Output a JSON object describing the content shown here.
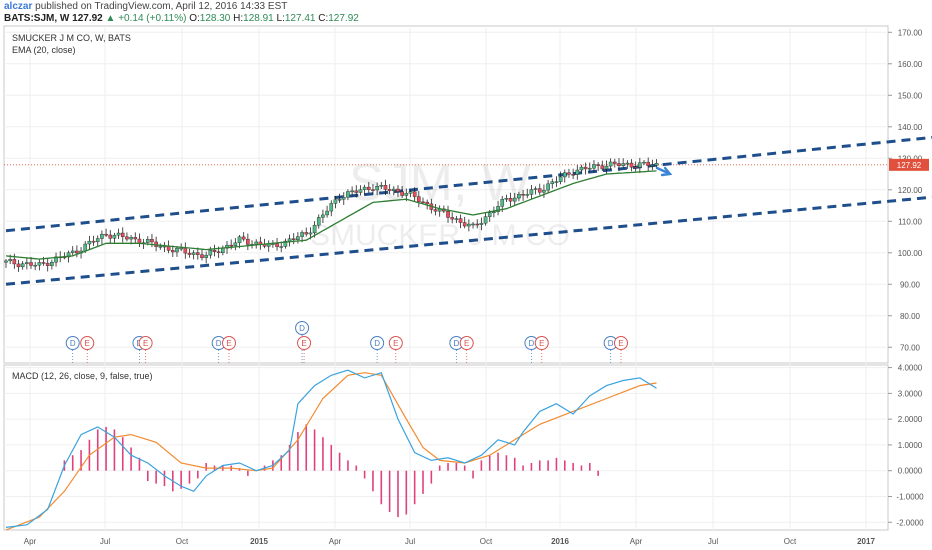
{
  "header": {
    "user": "alczar",
    "published": "published on TradingView.com, April 12, 2016 14:33 EST",
    "symbol": "BATS:SJM, W",
    "last": "127.92",
    "change": "+0.14 (+0.11%)",
    "o_label": "O:",
    "o": "128.30",
    "h_label": "H:",
    "h": "128.91",
    "l_label": "L:",
    "l": "127.41",
    "c_label": "C:",
    "c": "127.92"
  },
  "legend": {
    "series_title": "SMUCKER J M CO, W, BATS",
    "ema": "EMA (20, close)",
    "macd": "MACD (12, 26, close, 9, false, true)"
  },
  "watermark": {
    "symbol": "SJM, W",
    "name": "SMUCKER J M CO"
  },
  "colors": {
    "up": "#53b987",
    "down": "#eb4d5c",
    "ema": "#2e7d32",
    "channel": "#1f4e8c",
    "macd": "#3ba3e0",
    "signal": "#f28b30",
    "hist": "#e0417e",
    "price_tag": "#e0503c",
    "arrow": "#3b86d6"
  },
  "chart_data": [
    {
      "type": "candlestick",
      "price_label": "127.92",
      "ylim": [
        65,
        172
      ],
      "yticks": [
        "70.00",
        "80.00",
        "90.00",
        "100.00",
        "110.00",
        "120.00",
        "130.00",
        "140.00",
        "150.00",
        "160.00",
        "170.00"
      ],
      "xticks": [
        "Apr",
        "Jul",
        "Oct",
        "2015",
        "Apr",
        "Jul",
        "Oct",
        "2016",
        "Apr",
        "Jul",
        "Oct",
        "2017"
      ],
      "close_path": [
        [
          0,
          97
        ],
        [
          8,
          96
        ],
        [
          16,
          100
        ],
        [
          24,
          106
        ],
        [
          32,
          104
        ],
        [
          40,
          101
        ],
        [
          48,
          99
        ],
        [
          56,
          104
        ],
        [
          64,
          102
        ],
        [
          72,
          106
        ],
        [
          80,
          118
        ],
        [
          88,
          121
        ],
        [
          96,
          119
        ],
        [
          104,
          113
        ],
        [
          112,
          108
        ],
        [
          120,
          117
        ],
        [
          128,
          120
        ],
        [
          136,
          126
        ],
        [
          144,
          128
        ],
        [
          150,
          128
        ],
        [
          156,
          127.9
        ]
      ],
      "ema_path": [
        [
          0,
          99
        ],
        [
          8,
          98
        ],
        [
          16,
          99
        ],
        [
          24,
          103
        ],
        [
          32,
          103
        ],
        [
          40,
          102
        ],
        [
          48,
          101
        ],
        [
          56,
          102
        ],
        [
          64,
          103
        ],
        [
          72,
          104
        ],
        [
          80,
          110
        ],
        [
          88,
          116
        ],
        [
          96,
          117
        ],
        [
          104,
          114
        ],
        [
          112,
          112
        ],
        [
          120,
          114
        ],
        [
          128,
          118
        ],
        [
          136,
          122
        ],
        [
          144,
          125
        ],
        [
          156,
          126
        ]
      ],
      "channel_upper": [
        [
          0,
          107
        ],
        [
          225,
          137
        ]
      ],
      "channel_lower": [
        [
          0,
          90
        ],
        [
          225,
          118
        ]
      ],
      "events": [
        {
          "week": 16,
          "type": "D"
        },
        {
          "week": 19,
          "type": "E"
        },
        {
          "week": 32,
          "type": "D"
        },
        {
          "week": 33,
          "type": "E"
        },
        {
          "week": 51,
          "type": "D"
        },
        {
          "week": 53,
          "type": "E"
        },
        {
          "week": 71,
          "type": "D"
        },
        {
          "week": 71,
          "type": "E"
        },
        {
          "week": 89,
          "type": "D"
        },
        {
          "week": 93,
          "type": "E"
        },
        {
          "week": 108,
          "type": "D"
        },
        {
          "week": 110,
          "type": "E"
        },
        {
          "week": 126,
          "type": "D"
        },
        {
          "week": 128,
          "type": "E"
        },
        {
          "week": 145,
          "type": "D"
        },
        {
          "week": 147,
          "type": "E"
        }
      ]
    },
    {
      "type": "line",
      "title": "MACD (12, 26, close, 9, false, true)",
      "ylim": [
        -2.3,
        4.1
      ],
      "yticks": [
        "-2.0000",
        "-1.0000",
        "0.0000",
        "1.0000",
        "2.0000",
        "3.0000",
        "4.0000"
      ],
      "macd": [
        [
          0,
          -2.2
        ],
        [
          5,
          -2.1
        ],
        [
          10,
          -1.5
        ],
        [
          14,
          0.2
        ],
        [
          18,
          1.4
        ],
        [
          22,
          1.7
        ],
        [
          26,
          1.3
        ],
        [
          30,
          0.6
        ],
        [
          34,
          0.3
        ],
        [
          38,
          -0.2
        ],
        [
          42,
          -0.6
        ],
        [
          45,
          -0.8
        ],
        [
          48,
          -0.2
        ],
        [
          52,
          0.2
        ],
        [
          56,
          0.3
        ],
        [
          60,
          0.0
        ],
        [
          64,
          0.2
        ],
        [
          68,
          0.8
        ],
        [
          70,
          2.6
        ],
        [
          74,
          3.3
        ],
        [
          78,
          3.7
        ],
        [
          82,
          3.9
        ],
        [
          86,
          3.6
        ],
        [
          90,
          3.8
        ],
        [
          94,
          2.0
        ],
        [
          98,
          0.7
        ],
        [
          102,
          0.4
        ],
        [
          106,
          0.5
        ],
        [
          110,
          0.3
        ],
        [
          114,
          0.6
        ],
        [
          118,
          1.2
        ],
        [
          122,
          1.0
        ],
        [
          124,
          1.5
        ],
        [
          128,
          2.3
        ],
        [
          132,
          2.6
        ],
        [
          136,
          2.2
        ],
        [
          140,
          2.9
        ],
        [
          144,
          3.3
        ],
        [
          148,
          3.5
        ],
        [
          152,
          3.6
        ],
        [
          156,
          3.2
        ]
      ],
      "signal": [
        [
          0,
          -2.3
        ],
        [
          8,
          -1.8
        ],
        [
          14,
          -0.8
        ],
        [
          20,
          0.6
        ],
        [
          26,
          1.3
        ],
        [
          30,
          1.4
        ],
        [
          36,
          1.1
        ],
        [
          42,
          0.3
        ],
        [
          48,
          0.1
        ],
        [
          54,
          0.1
        ],
        [
          60,
          0.0
        ],
        [
          64,
          0.1
        ],
        [
          70,
          1.2
        ],
        [
          76,
          2.8
        ],
        [
          82,
          3.7
        ],
        [
          86,
          3.8
        ],
        [
          90,
          3.7
        ],
        [
          96,
          2.0
        ],
        [
          100,
          0.9
        ],
        [
          104,
          0.4
        ],
        [
          110,
          0.3
        ],
        [
          116,
          0.6
        ],
        [
          122,
          1.2
        ],
        [
          128,
          1.8
        ],
        [
          136,
          2.3
        ],
        [
          144,
          2.8
        ],
        [
          152,
          3.3
        ],
        [
          156,
          3.4
        ]
      ],
      "histogram": [
        [
          14,
          0.4
        ],
        [
          16,
          0.6
        ],
        [
          18,
          0.8
        ],
        [
          20,
          1.2
        ],
        [
          22,
          1.6
        ],
        [
          24,
          1.7
        ],
        [
          26,
          1.6
        ],
        [
          28,
          1.3
        ],
        [
          30,
          0.9
        ],
        [
          32,
          0.5
        ],
        [
          34,
          -0.4
        ],
        [
          36,
          -0.5
        ],
        [
          38,
          -0.6
        ],
        [
          40,
          -0.8
        ],
        [
          42,
          -0.7
        ],
        [
          44,
          -0.5
        ],
        [
          46,
          -0.3
        ],
        [
          48,
          0.3
        ],
        [
          50,
          0.2
        ],
        [
          52,
          0.2
        ],
        [
          54,
          0.2
        ],
        [
          56,
          0.1
        ],
        [
          58,
          -0.2
        ],
        [
          62,
          0.2
        ],
        [
          64,
          0.4
        ],
        [
          66,
          0.6
        ],
        [
          68,
          1.0
        ],
        [
          70,
          1.5
        ],
        [
          72,
          1.8
        ],
        [
          74,
          1.6
        ],
        [
          76,
          1.3
        ],
        [
          78,
          1.0
        ],
        [
          80,
          0.7
        ],
        [
          82,
          0.4
        ],
        [
          84,
          0.2
        ],
        [
          86,
          -0.3
        ],
        [
          88,
          -0.8
        ],
        [
          90,
          -1.3
        ],
        [
          92,
          -1.6
        ],
        [
          94,
          -1.8
        ],
        [
          96,
          -1.7
        ],
        [
          98,
          -1.3
        ],
        [
          100,
          -0.9
        ],
        [
          102,
          -0.5
        ],
        [
          104,
          0.2
        ],
        [
          106,
          0.3
        ],
        [
          108,
          0.3
        ],
        [
          110,
          0.2
        ],
        [
          112,
          -0.3
        ],
        [
          114,
          0.4
        ],
        [
          116,
          0.6
        ],
        [
          118,
          0.7
        ],
        [
          120,
          0.6
        ],
        [
          122,
          0.5
        ],
        [
          124,
          0.2
        ],
        [
          126,
          0.3
        ],
        [
          128,
          0.4
        ],
        [
          130,
          0.4
        ],
        [
          132,
          0.5
        ],
        [
          134,
          0.4
        ],
        [
          136,
          0.3
        ],
        [
          138,
          0.2
        ],
        [
          140,
          0.3
        ],
        [
          142,
          -0.2
        ]
      ]
    }
  ]
}
